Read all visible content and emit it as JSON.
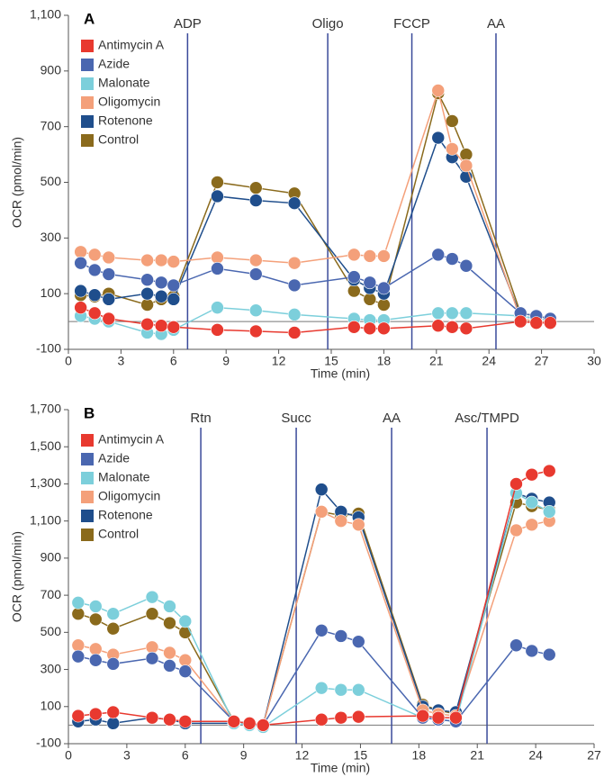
{
  "chart_data": [
    {
      "type": "line",
      "panel": "A",
      "xlabel": "Time (min)",
      "ylabel": "OCR (pmol/min)",
      "xlim": [
        0,
        30
      ],
      "xticks": [
        0,
        3,
        6,
        9,
        12,
        15,
        18,
        21,
        24,
        27,
        30
      ],
      "ylim": [
        -100,
        1100
      ],
      "yticks": [
        -100,
        100,
        300,
        500,
        700,
        900,
        {
          "value": 1100,
          "label": "1,100"
        }
      ],
      "reference_line": 0,
      "annotations": [
        {
          "label": "ADP",
          "x": 6.8
        },
        {
          "label": "Oligo",
          "x": 14.8
        },
        {
          "label": "FCCP",
          "x": 19.6
        },
        {
          "label": "AA",
          "x": 24.4
        }
      ],
      "x": [
        0.7,
        1.5,
        2.3,
        4.5,
        5.3,
        6.0,
        8.5,
        10.7,
        12.9,
        16.3,
        17.2,
        18.0,
        21.1,
        21.9,
        22.7,
        25.8,
        26.7,
        27.5
      ],
      "series": [
        {
          "name": "Antimycin A",
          "color": "#e8392f",
          "values": [
            50,
            30,
            10,
            -10,
            -15,
            -20,
            -30,
            -35,
            -40,
            -20,
            -25,
            -25,
            -15,
            -20,
            -25,
            0,
            -5,
            -5
          ]
        },
        {
          "name": "Azide",
          "color": "#4a67b0",
          "values": [
            210,
            185,
            170,
            150,
            140,
            130,
            190,
            170,
            130,
            160,
            140,
            120,
            240,
            225,
            200,
            30,
            20,
            10
          ]
        },
        {
          "name": "Malonate",
          "color": "#7ccfdb",
          "values": [
            20,
            10,
            0,
            -40,
            -45,
            -30,
            50,
            40,
            25,
            10,
            5,
            5,
            30,
            30,
            30,
            20,
            10,
            5
          ]
        },
        {
          "name": "Oligomycin",
          "color": "#f4a07a",
          "values": [
            250,
            240,
            230,
            220,
            220,
            215,
            230,
            220,
            210,
            240,
            235,
            235,
            830,
            620,
            560,
            10,
            0,
            -5
          ]
        },
        {
          "name": "Rotenone",
          "color": "#1f4e8c",
          "values": [
            110,
            95,
            80,
            100,
            90,
            80,
            450,
            435,
            425,
            150,
            120,
            100,
            660,
            590,
            520,
            20,
            10,
            5
          ]
        },
        {
          "name": "Control",
          "color": "#8a6a1c",
          "values": [
            95,
            90,
            100,
            60,
            80,
            90,
            500,
            480,
            460,
            110,
            80,
            60,
            820,
            720,
            600,
            30,
            20,
            10
          ]
        }
      ]
    },
    {
      "type": "line",
      "panel": "B",
      "xlabel": "Time (min)",
      "ylabel": "OCR (pmol/min)",
      "xlim": [
        0,
        27
      ],
      "xticks": [
        0,
        3,
        6,
        9,
        12,
        15,
        18,
        21,
        24,
        27
      ],
      "ylim": [
        -100,
        1700
      ],
      "yticks": [
        -100,
        100,
        300,
        500,
        700,
        900,
        {
          "value": 1100,
          "label": "1,100"
        },
        {
          "value": 1300,
          "label": "1,300"
        },
        {
          "value": 1500,
          "label": "1,500"
        },
        {
          "value": 1700,
          "label": "1,700"
        }
      ],
      "reference_line": 0,
      "annotations": [
        {
          "label": "Rtn",
          "x": 6.8
        },
        {
          "label": "Succ",
          "x": 11.7
        },
        {
          "label": "AA",
          "x": 16.6
        },
        {
          "label": "Asc/TMPD",
          "x": 21.5
        }
      ],
      "x": [
        0.5,
        1.4,
        2.3,
        4.3,
        5.2,
        6.0,
        8.5,
        9.3,
        10.0,
        13.0,
        14.0,
        14.9,
        18.2,
        19.0,
        19.9,
        23.0,
        23.8,
        24.7
      ],
      "series": [
        {
          "name": "Antimycin A",
          "color": "#e8392f",
          "values": [
            50,
            60,
            70,
            40,
            30,
            20,
            20,
            10,
            0,
            30,
            40,
            45,
            50,
            40,
            40,
            1300,
            1350,
            1370
          ]
        },
        {
          "name": "Azide",
          "color": "#4a67b0",
          "values": [
            370,
            350,
            330,
            360,
            320,
            290,
            20,
            10,
            0,
            510,
            480,
            450,
            40,
            30,
            20,
            430,
            400,
            380
          ]
        },
        {
          "name": "Malonate",
          "color": "#7ccfdb",
          "values": [
            660,
            640,
            600,
            690,
            640,
            560,
            10,
            0,
            -10,
            200,
            190,
            190,
            40,
            30,
            20,
            1250,
            1200,
            1150
          ]
        },
        {
          "name": "Oligomycin",
          "color": "#f4a07a",
          "values": [
            430,
            410,
            380,
            420,
            390,
            350,
            20,
            10,
            0,
            1150,
            1100,
            1080,
            80,
            60,
            50,
            1050,
            1080,
            1100
          ]
        },
        {
          "name": "Rotenone",
          "color": "#1f4e8c",
          "values": [
            20,
            30,
            10,
            40,
            30,
            10,
            10,
            0,
            0,
            1270,
            1150,
            1120,
            100,
            80,
            70,
            1250,
            1220,
            1200
          ]
        },
        {
          "name": "Control",
          "color": "#8a6a1c",
          "values": [
            600,
            570,
            520,
            600,
            550,
            500,
            20,
            10,
            0,
            1150,
            1130,
            1140,
            110,
            80,
            60,
            1200,
            1180,
            1160
          ]
        }
      ]
    }
  ]
}
